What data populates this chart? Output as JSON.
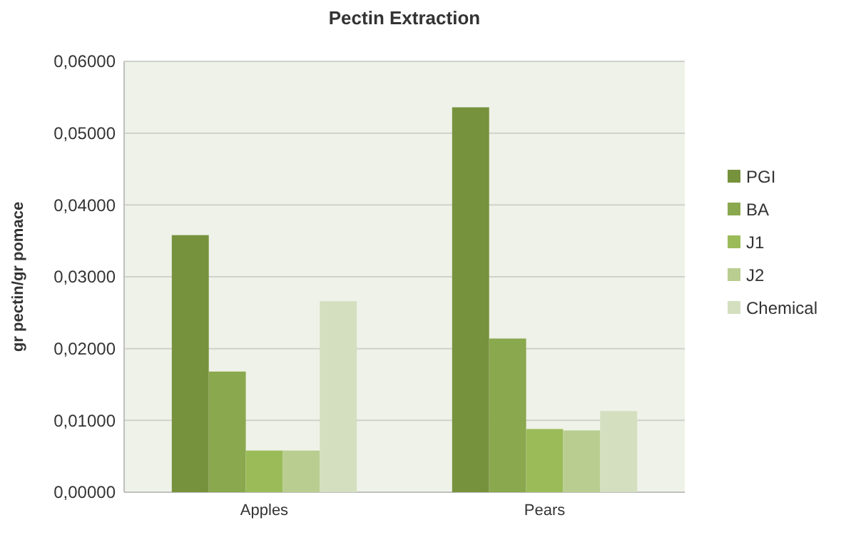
{
  "chart_data": {
    "type": "bar",
    "title": "Pectin Extraction",
    "ylabel": "gr pectin/gr pomace",
    "categories": [
      "Apples",
      "Pears"
    ],
    "series": [
      {
        "name": "PGI",
        "color": "#76923c",
        "values": [
          0.0358,
          0.0536
        ]
      },
      {
        "name": "BA",
        "color": "#8aa84e",
        "values": [
          0.0168,
          0.0214
        ]
      },
      {
        "name": "J1",
        "color": "#9bbb59",
        "values": [
          0.0058,
          0.0088
        ]
      },
      {
        "name": "J2",
        "color": "#b9cd90",
        "values": [
          0.0058,
          0.0086
        ]
      },
      {
        "name": "Chemical",
        "color": "#d3dfbf",
        "values": [
          0.0266,
          0.0113
        ]
      }
    ],
    "ylim": [
      0,
      0.06
    ],
    "yticks": [
      {
        "value": 0,
        "label": "0,00000"
      },
      {
        "value": 0.01,
        "label": "0,01000"
      },
      {
        "value": 0.02,
        "label": "0,02000"
      },
      {
        "value": 0.03,
        "label": "0,03000"
      },
      {
        "value": 0.04,
        "label": "0,04000"
      },
      {
        "value": 0.05,
        "label": "0,05000"
      },
      {
        "value": 0.06,
        "label": "0,06000"
      }
    ],
    "grid": "y",
    "legend": "right"
  }
}
